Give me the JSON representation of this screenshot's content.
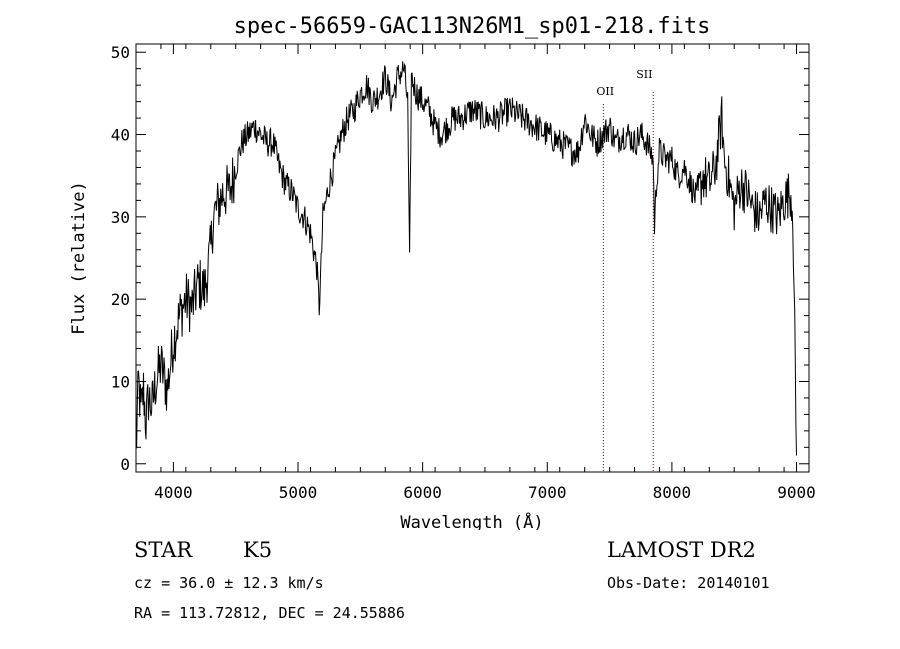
{
  "chart_data": {
    "type": "line",
    "title": "spec-56659-GAC113N26M1_sp01-218.fits",
    "xlabel": "Wavelength (Å)",
    "ylabel": "Flux (relative)",
    "xlim": [
      3700,
      9100
    ],
    "ylim": [
      -1,
      51
    ],
    "x_ticks": [
      4000,
      5000,
      6000,
      7000,
      8000,
      9000
    ],
    "y_ticks": [
      0,
      10,
      20,
      30,
      40,
      50
    ],
    "grid": false,
    "series": [
      {
        "x": [
          3700,
          3720,
          3740,
          3760,
          3780,
          3800,
          3830,
          3860,
          3900,
          3950,
          4000,
          4050,
          4100,
          4150,
          4200,
          4250,
          4300,
          4320,
          4350,
          4400,
          4450,
          4500,
          4550,
          4600,
          4650,
          4700,
          4750,
          4800,
          4850,
          4900,
          4950,
          5000,
          5050,
          5100,
          5150,
          5170,
          5185,
          5200,
          5250,
          5300,
          5350,
          5400,
          5450,
          5500,
          5550,
          5600,
          5650,
          5700,
          5750,
          5800,
          5850,
          5880,
          5895,
          5910,
          5930,
          5950,
          6000,
          6050,
          6100,
          6150,
          6200,
          6250,
          6300,
          6400,
          6500,
          6600,
          6700,
          6800,
          6900,
          7000,
          7100,
          7200,
          7250,
          7300,
          7350,
          7400,
          7450,
          7500,
          7550,
          7600,
          7650,
          7700,
          7750,
          7800,
          7850,
          7860,
          7880,
          7900,
          7950,
          8000,
          8050,
          8100,
          8150,
          8200,
          8250,
          8300,
          8350,
          8400,
          8420,
          8450,
          8500,
          8550,
          8600,
          8650,
          8700,
          8750,
          8800,
          8850,
          8900,
          8950,
          8970,
          9000
        ],
        "y": [
          1,
          10,
          6,
          9,
          5,
          8,
          7,
          10,
          12,
          9,
          15,
          18,
          20,
          19,
          22,
          21,
          26,
          30,
          31,
          33,
          33,
          36,
          39,
          40,
          41,
          40,
          39,
          39,
          36,
          34,
          33,
          31,
          30,
          28,
          24,
          19,
          24,
          30,
          34,
          37,
          40,
          42,
          43,
          45,
          46,
          44,
          45,
          47,
          44,
          47,
          48,
          44,
          24,
          47,
          46,
          45,
          44,
          43,
          41,
          40,
          41,
          42,
          42,
          43,
          42,
          42,
          43,
          42,
          41,
          40,
          39,
          38,
          38,
          42,
          40,
          39,
          40,
          41,
          39,
          40,
          40,
          39,
          40,
          39,
          37,
          29,
          35,
          38,
          37,
          37,
          35,
          36,
          34,
          32,
          35,
          34,
          36,
          42,
          37,
          35,
          31,
          34,
          33,
          31,
          30,
          32,
          31,
          30,
          32,
          33,
          31,
          1
        ]
      }
    ],
    "annotations": [
      {
        "x": 7450,
        "label": "OII"
      },
      {
        "x": 7850,
        "label": "SII"
      }
    ]
  },
  "info": {
    "object_class": "STAR",
    "subclass": "K5",
    "survey": "LAMOST DR2",
    "cz_line": "cz = 36.0 ± 12.3 km/s",
    "obs_date": "Obs-Date: 20140101",
    "coords": "RA = 113.72812, DEC =  24.55886"
  }
}
